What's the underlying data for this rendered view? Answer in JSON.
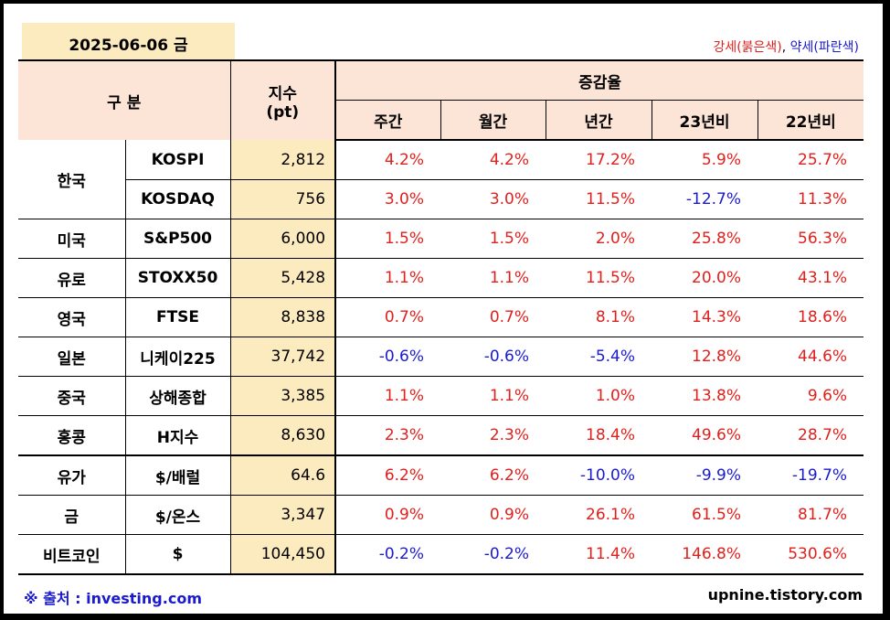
{
  "date": "2025-06-06 금",
  "legend": {
    "up": "강세(붉은색)",
    "sep": ", ",
    "down": "약세(파란색)"
  },
  "header": {
    "category": "구 분",
    "index": "지수",
    "index_unit": "(pt)",
    "change": "증감율",
    "cols": [
      "주간",
      "월간",
      "년간",
      "23년비",
      "22년비"
    ]
  },
  "rows": [
    {
      "cat": "한국",
      "name": "KOSPI",
      "idx": "2,812",
      "vals": [
        "4.2%",
        "4.2%",
        "17.2%",
        "5.9%",
        "25.7%"
      ],
      "signs": [
        "pos",
        "pos",
        "pos",
        "pos",
        "pos"
      ]
    },
    {
      "cat": "",
      "name": "KOSDAQ",
      "idx": "756",
      "vals": [
        "3.0%",
        "3.0%",
        "11.5%",
        "-12.7%",
        "11.3%"
      ],
      "signs": [
        "pos",
        "pos",
        "pos",
        "neg",
        "pos"
      ]
    },
    {
      "cat": "미국",
      "name": "S&P500",
      "idx": "6,000",
      "vals": [
        "1.5%",
        "1.5%",
        "2.0%",
        "25.8%",
        "56.3%"
      ],
      "signs": [
        "pos",
        "pos",
        "pos",
        "pos",
        "pos"
      ]
    },
    {
      "cat": "유로",
      "name": "STOXX50",
      "idx": "5,428",
      "vals": [
        "1.1%",
        "1.1%",
        "11.5%",
        "20.0%",
        "43.1%"
      ],
      "signs": [
        "pos",
        "pos",
        "pos",
        "pos",
        "pos"
      ]
    },
    {
      "cat": "영국",
      "name": "FTSE",
      "idx": "8,838",
      "vals": [
        "0.7%",
        "0.7%",
        "8.1%",
        "14.3%",
        "18.6%"
      ],
      "signs": [
        "pos",
        "pos",
        "pos",
        "pos",
        "pos"
      ]
    },
    {
      "cat": "일본",
      "name": "니케이225",
      "idx": "37,742",
      "vals": [
        "-0.6%",
        "-0.6%",
        "-5.4%",
        "12.8%",
        "44.6%"
      ],
      "signs": [
        "neg",
        "neg",
        "neg",
        "pos",
        "pos"
      ]
    },
    {
      "cat": "중국",
      "name": "상해종합",
      "idx": "3,385",
      "vals": [
        "1.1%",
        "1.1%",
        "1.0%",
        "13.8%",
        "9.6%"
      ],
      "signs": [
        "pos",
        "pos",
        "pos",
        "pos",
        "pos"
      ]
    },
    {
      "cat": "홍콩",
      "name": "H지수",
      "idx": "8,630",
      "vals": [
        "2.3%",
        "2.3%",
        "18.4%",
        "49.6%",
        "28.7%"
      ],
      "signs": [
        "pos",
        "pos",
        "pos",
        "pos",
        "pos"
      ]
    },
    {
      "cat": "유가",
      "name": "$/배럴",
      "idx": "64.6",
      "vals": [
        "6.2%",
        "6.2%",
        "-10.0%",
        "-9.9%",
        "-19.7%"
      ],
      "signs": [
        "pos",
        "pos",
        "neg",
        "neg",
        "neg"
      ]
    },
    {
      "cat": "금",
      "name": "$/온스",
      "idx": "3,347",
      "vals": [
        "0.9%",
        "0.9%",
        "26.1%",
        "61.5%",
        "81.7%"
      ],
      "signs": [
        "pos",
        "pos",
        "pos",
        "pos",
        "pos"
      ]
    },
    {
      "cat": "비트코인",
      "name": "$",
      "idx": "104,450",
      "vals": [
        "-0.2%",
        "-0.2%",
        "11.4%",
        "146.8%",
        "530.6%"
      ],
      "signs": [
        "neg",
        "neg",
        "pos",
        "pos",
        "pos"
      ]
    }
  ],
  "footer": {
    "source": "※ 출처 : investing.com",
    "site": "upnine.tistory.com"
  }
}
